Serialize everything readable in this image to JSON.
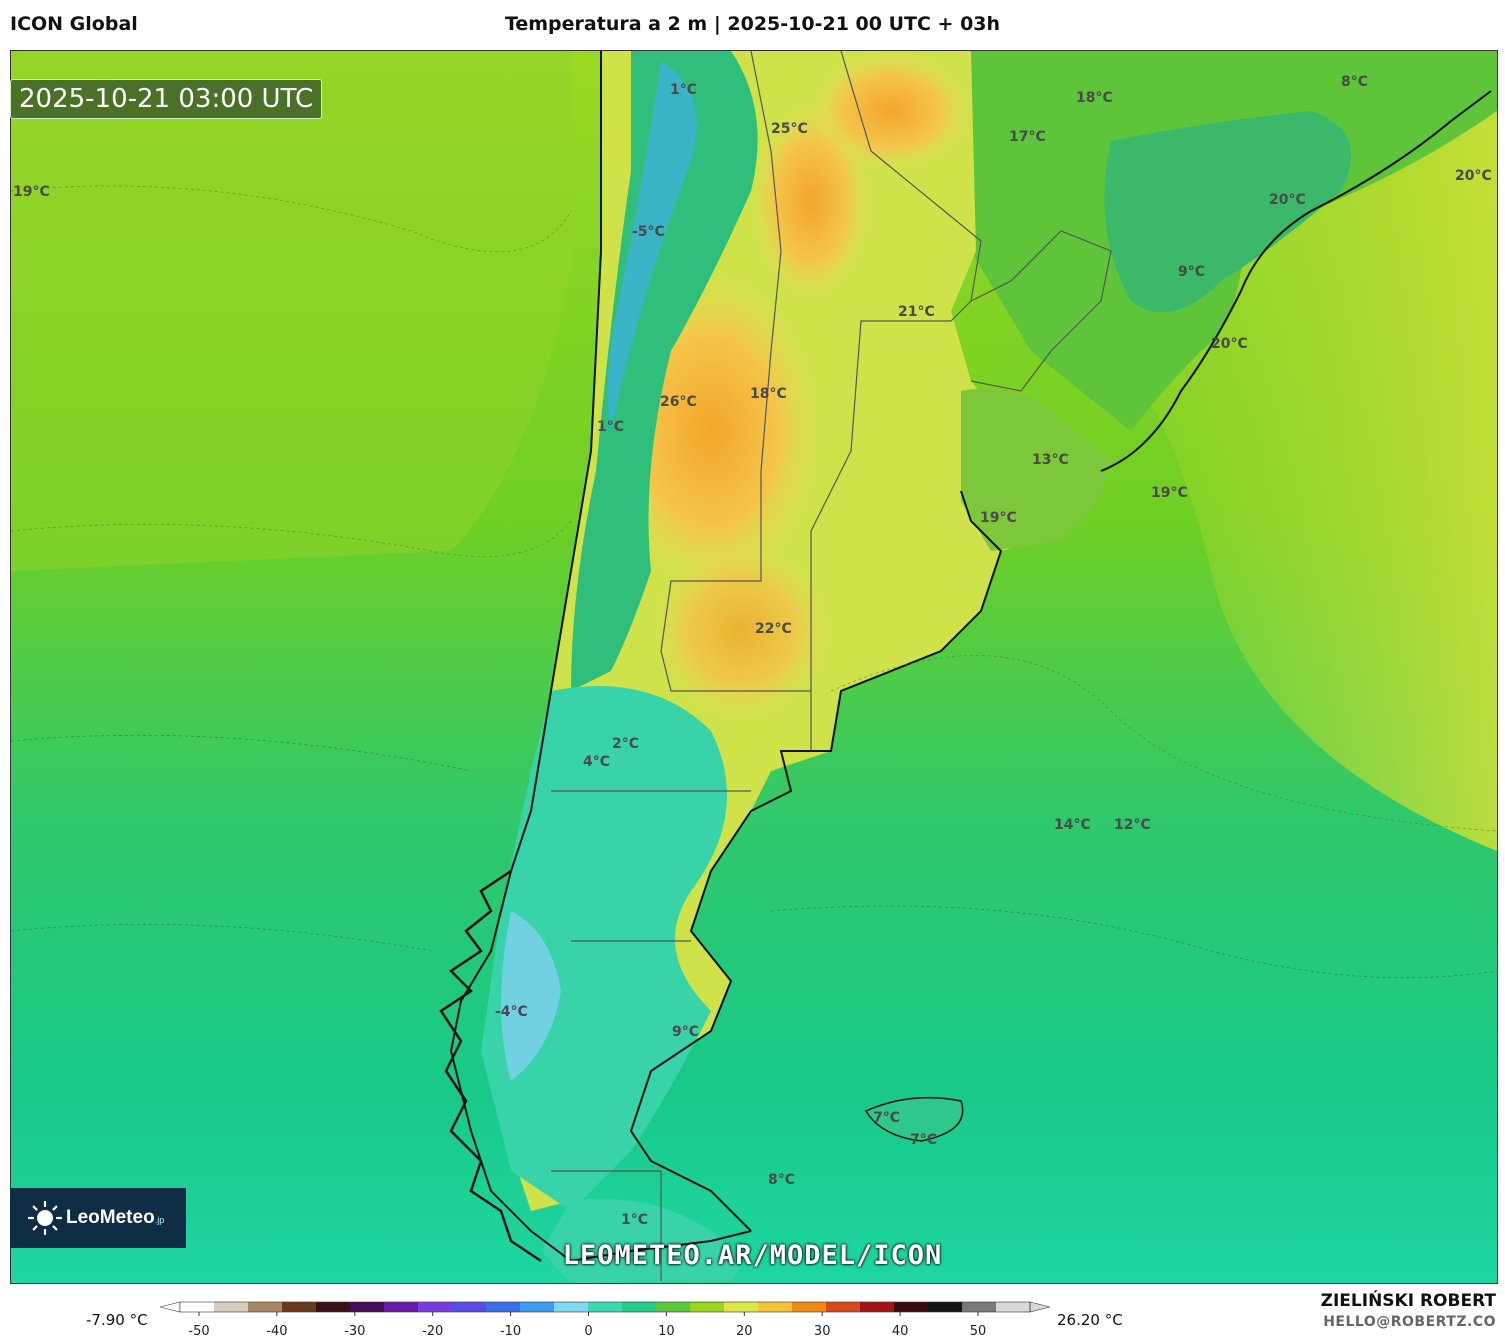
{
  "header": {
    "model_name": "ICON Global",
    "title": "Temperatura a 2 m | 2025-10-21 00 UTC + 03h"
  },
  "map": {
    "timestamp": "2025-10-21 03:00 UTC",
    "watermark": "LEOMETEO.AR/MODEL/ICON",
    "logo": {
      "name": "LeoMeteo",
      "suffix": ".jp"
    },
    "temperature_labels": [
      {
        "text": "1°C",
        "id": "t1"
      },
      {
        "text": "25°C",
        "id": "t2"
      },
      {
        "text": "18°C",
        "id": "t3"
      },
      {
        "text": "17°C",
        "id": "t4"
      },
      {
        "text": "8°C",
        "id": "t5"
      },
      {
        "text": "19°C",
        "id": "t6"
      },
      {
        "text": "20°C",
        "id": "t7"
      },
      {
        "text": "20°C",
        "id": "t8"
      },
      {
        "text": "-5°C",
        "id": "t9"
      },
      {
        "text": "9°C",
        "id": "t10"
      },
      {
        "text": "21°C",
        "id": "t11"
      },
      {
        "text": "20°C",
        "id": "t12"
      },
      {
        "text": "18°C",
        "id": "t13"
      },
      {
        "text": "26°C",
        "id": "t14"
      },
      {
        "text": "1°C",
        "id": "t15"
      },
      {
        "text": "13°C",
        "id": "t16"
      },
      {
        "text": "19°C",
        "id": "t17"
      },
      {
        "text": "19°C",
        "id": "t18"
      },
      {
        "text": "22°C",
        "id": "t19"
      },
      {
        "text": "2°C",
        "id": "t20"
      },
      {
        "text": "4°C",
        "id": "t21"
      },
      {
        "text": "14°C",
        "id": "t22"
      },
      {
        "text": "12°C",
        "id": "t23"
      },
      {
        "text": "-4°C",
        "id": "t24"
      },
      {
        "text": "9°C",
        "id": "t25"
      },
      {
        "text": "7°C",
        "id": "t26"
      },
      {
        "text": "7°C",
        "id": "t27"
      },
      {
        "text": "8°C",
        "id": "t28"
      },
      {
        "text": "1°C",
        "id": "t29"
      }
    ]
  },
  "colorbar": {
    "min_label": "-7.90 °C",
    "max_label": "26.20 °C",
    "ticks": [
      "-50",
      "-40",
      "-30",
      "-20",
      "-10",
      "0",
      "10",
      "20",
      "30",
      "40",
      "50"
    ],
    "colors": [
      "#ffffff",
      "#d8cdbf",
      "#a98766",
      "#6b3a1e",
      "#3a0f18",
      "#4a0a5a",
      "#6a1aa8",
      "#7a3be0",
      "#5a4be8",
      "#3b6fe8",
      "#3a9ef0",
      "#7fd8f5",
      "#3cd8b4",
      "#22cc8a",
      "#5cc83a",
      "#9ad61e",
      "#dde64a",
      "#f7c23a",
      "#f08a14",
      "#d8481a",
      "#a01414",
      "#3a0a0a",
      "#141414",
      "#7a7a7a",
      "#d8d8d8"
    ]
  },
  "credits": {
    "author": "ZIELIŃSKI ROBERT",
    "email": "HELLO@ROBERTZ.CO"
  }
}
